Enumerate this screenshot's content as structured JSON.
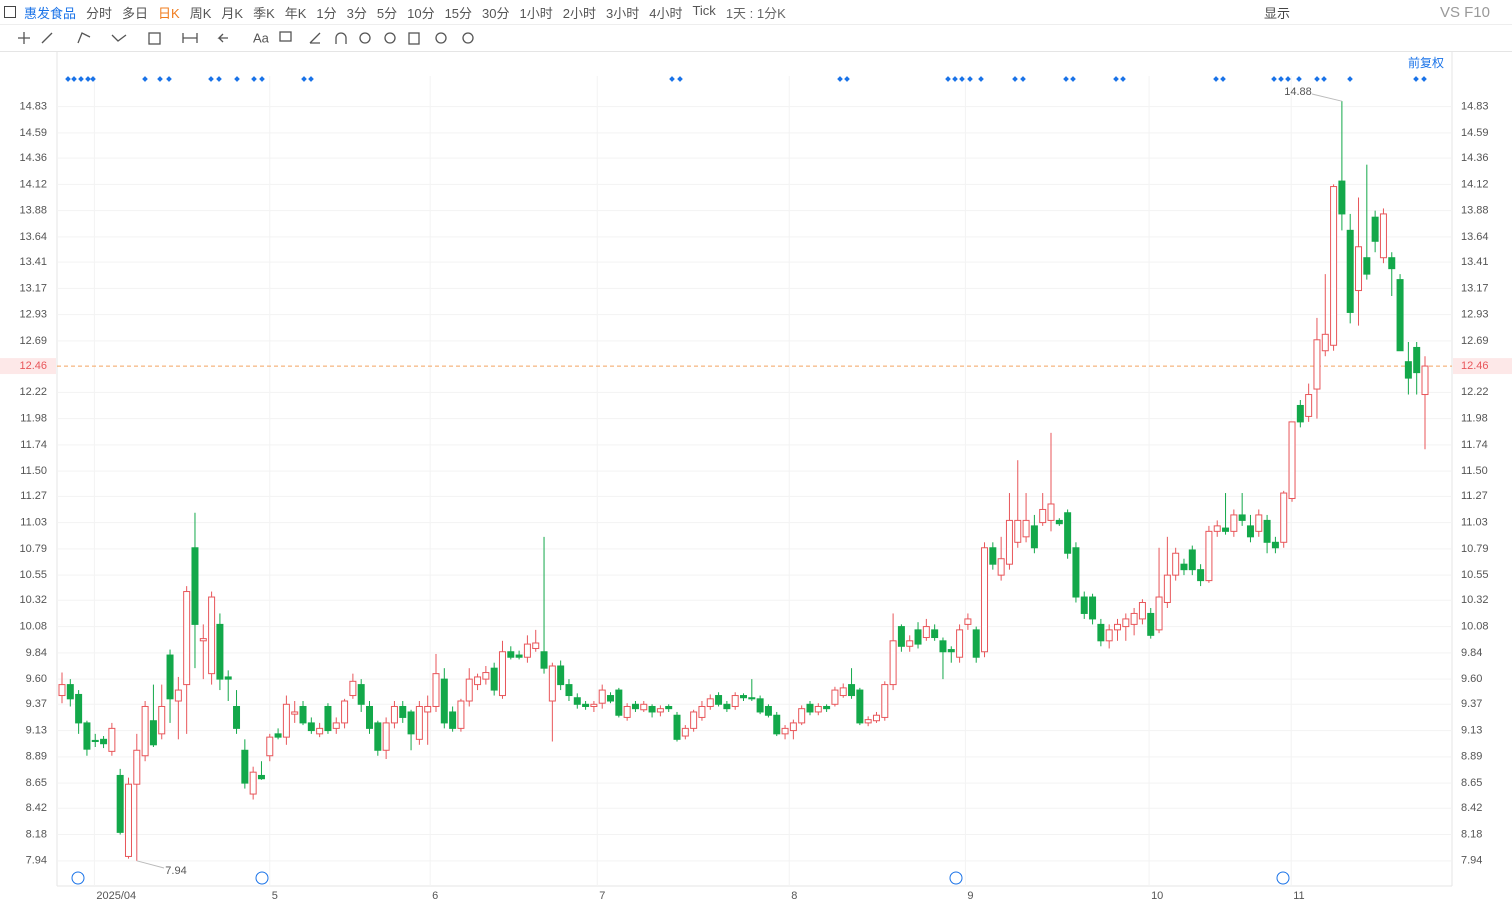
{
  "toolbar": {
    "stock": "惠发食品",
    "periods": [
      "分时",
      "多日",
      "日K",
      "周K",
      "月K",
      "季K",
      "年K",
      "1分",
      "3分",
      "5分",
      "10分",
      "15分",
      "30分",
      "1小时",
      "2小时",
      "3小时",
      "4小时",
      "Tick"
    ],
    "active_period": "日K",
    "interval": "1天 : 1分K",
    "display": "显示",
    "compare": "VS F10",
    "text_tool": "Aa"
  },
  "chart_data": {
    "type": "candlestick",
    "adjust": "前复权",
    "ylim": [
      7.71,
      15.11
    ],
    "yticks": [
      14.83,
      14.59,
      14.36,
      14.12,
      13.88,
      13.64,
      13.41,
      13.17,
      12.93,
      12.69,
      12.22,
      11.98,
      11.74,
      {
        "value": 11.5,
        "label": "11.50"
      },
      11.27,
      11.03,
      10.79,
      10.55,
      10.32,
      10.08,
      9.84,
      {
        "value": 9.6,
        "label": "9.60"
      },
      9.37,
      9.13,
      8.89,
      8.65,
      8.42,
      8.18,
      7.94
    ],
    "xticks": [
      {
        "value": 3.9,
        "label": "2025/04"
      },
      {
        "value": 25,
        "label": "5"
      },
      {
        "value": 44.3,
        "label": "6"
      },
      {
        "value": 64.4,
        "label": "7"
      },
      {
        "value": 87.5,
        "label": "8"
      },
      {
        "value": 108.7,
        "label": "9"
      },
      {
        "value": 130.8,
        "label": "10"
      },
      {
        "value": 147.9,
        "label": "11"
      }
    ],
    "last_price": 12.46,
    "high_label": 14.88,
    "low_label": 7.94,
    "up_color": "#e8565a",
    "down_color": "#13a84a",
    "ohlc": [
      [
        9.45,
        9.66,
        9.38,
        9.55
      ],
      [
        9.55,
        9.6,
        9.35,
        9.42
      ],
      [
        9.46,
        9.5,
        9.1,
        9.2
      ],
      [
        9.2,
        9.22,
        8.9,
        8.96
      ],
      [
        9.04,
        9.1,
        8.98,
        9.03
      ],
      [
        9.05,
        9.08,
        8.97,
        9.01
      ],
      [
        8.94,
        9.2,
        8.9,
        9.15
      ],
      [
        8.72,
        8.78,
        8.18,
        8.2
      ],
      [
        7.98,
        8.7,
        7.96,
        8.64
      ],
      [
        8.64,
        9.1,
        7.94,
        8.95
      ],
      [
        8.9,
        9.4,
        8.85,
        9.35
      ],
      [
        9.22,
        9.55,
        8.98,
        9.0
      ],
      [
        9.1,
        9.55,
        9.05,
        9.35
      ],
      [
        9.82,
        9.87,
        9.2,
        9.42
      ],
      [
        9.4,
        9.62,
        9.05,
        9.5
      ],
      [
        9.55,
        10.45,
        9.1,
        10.4
      ],
      [
        10.8,
        11.12,
        9.7,
        10.1
      ],
      [
        9.95,
        10.1,
        9.6,
        9.97
      ],
      [
        9.65,
        10.4,
        9.55,
        10.35
      ],
      [
        10.1,
        10.2,
        9.5,
        9.6
      ],
      [
        9.62,
        9.68,
        9.4,
        9.6
      ],
      [
        9.35,
        9.5,
        9.1,
        9.15
      ],
      [
        8.95,
        9.05,
        8.6,
        8.65
      ],
      [
        8.55,
        8.8,
        8.5,
        8.75
      ],
      [
        8.72,
        8.85,
        8.68,
        8.69
      ],
      [
        8.9,
        9.1,
        8.85,
        9.07
      ],
      [
        9.1,
        9.15,
        9.05,
        9.07
      ],
      [
        9.07,
        9.45,
        9.0,
        9.37
      ],
      [
        9.28,
        9.4,
        9.2,
        9.3
      ],
      [
        9.35,
        9.4,
        9.18,
        9.2
      ],
      [
        9.2,
        9.25,
        9.1,
        9.13
      ],
      [
        9.1,
        9.2,
        9.07,
        9.15
      ],
      [
        9.35,
        9.38,
        9.1,
        9.13
      ],
      [
        9.15,
        9.25,
        9.1,
        9.2
      ],
      [
        9.2,
        9.42,
        9.15,
        9.4
      ],
      [
        9.45,
        9.65,
        9.42,
        9.58
      ],
      [
        9.55,
        9.6,
        9.3,
        9.37
      ],
      [
        9.35,
        9.4,
        9.1,
        9.15
      ],
      [
        9.2,
        9.22,
        8.9,
        8.95
      ],
      [
        8.95,
        9.25,
        8.87,
        9.2
      ],
      [
        9.2,
        9.4,
        9.15,
        9.35
      ],
      [
        9.35,
        9.4,
        9.2,
        9.25
      ],
      [
        9.3,
        9.32,
        8.95,
        9.1
      ],
      [
        9.05,
        9.4,
        9.0,
        9.35
      ],
      [
        9.3,
        9.45,
        9.0,
        9.35
      ],
      [
        9.35,
        9.83,
        9.3,
        9.65
      ],
      [
        9.6,
        9.7,
        9.15,
        9.2
      ],
      [
        9.3,
        9.35,
        9.12,
        9.15
      ],
      [
        9.15,
        9.42,
        9.12,
        9.4
      ],
      [
        9.4,
        9.7,
        9.35,
        9.6
      ],
      [
        9.55,
        9.65,
        9.5,
        9.62
      ],
      [
        9.6,
        9.72,
        9.55,
        9.66
      ],
      [
        9.7,
        9.75,
        9.45,
        9.5
      ],
      [
        9.45,
        9.95,
        9.42,
        9.85
      ],
      [
        9.85,
        9.9,
        9.78,
        9.8
      ],
      [
        9.82,
        9.86,
        9.78,
        9.8
      ],
      [
        9.8,
        10.0,
        9.75,
        9.92
      ],
      [
        9.88,
        10.05,
        9.85,
        9.93
      ],
      [
        9.85,
        10.9,
        9.65,
        9.7
      ],
      [
        9.4,
        9.75,
        9.03,
        9.72
      ],
      [
        9.72,
        9.77,
        9.5,
        9.55
      ],
      [
        9.55,
        9.6,
        9.4,
        9.45
      ],
      [
        9.43,
        9.47,
        9.33,
        9.37
      ],
      [
        9.37,
        9.4,
        9.32,
        9.35
      ],
      [
        9.35,
        9.4,
        9.3,
        9.37
      ],
      [
        9.38,
        9.55,
        9.33,
        9.5
      ],
      [
        9.45,
        9.48,
        9.38,
        9.4
      ],
      [
        9.5,
        9.52,
        9.25,
        9.27
      ],
      [
        9.25,
        9.38,
        9.22,
        9.35
      ],
      [
        9.37,
        9.4,
        9.3,
        9.33
      ],
      [
        9.32,
        9.4,
        9.3,
        9.37
      ],
      [
        9.35,
        9.37,
        9.25,
        9.3
      ],
      [
        9.3,
        9.36,
        9.26,
        9.33
      ],
      [
        9.35,
        9.37,
        9.3,
        9.33
      ],
      [
        9.27,
        9.3,
        9.03,
        9.05
      ],
      [
        9.08,
        9.18,
        9.05,
        9.15
      ],
      [
        9.15,
        9.32,
        9.12,
        9.3
      ],
      [
        9.25,
        9.4,
        9.22,
        9.35
      ],
      [
        9.35,
        9.46,
        9.32,
        9.42
      ],
      [
        9.45,
        9.48,
        9.35,
        9.37
      ],
      [
        9.37,
        9.4,
        9.3,
        9.33
      ],
      [
        9.35,
        9.48,
        9.32,
        9.45
      ],
      [
        9.45,
        9.47,
        9.4,
        9.43
      ],
      [
        9.43,
        9.6,
        9.4,
        9.42
      ],
      [
        9.42,
        9.45,
        9.28,
        9.3
      ],
      [
        9.35,
        9.37,
        9.25,
        9.27
      ],
      [
        9.27,
        9.3,
        9.08,
        9.1
      ],
      [
        9.1,
        9.18,
        9.05,
        9.15
      ],
      [
        9.13,
        9.23,
        9.05,
        9.2
      ],
      [
        9.2,
        9.36,
        9.18,
        9.33
      ],
      [
        9.37,
        9.4,
        9.27,
        9.3
      ],
      [
        9.3,
        9.38,
        9.27,
        9.35
      ],
      [
        9.35,
        9.37,
        9.3,
        9.33
      ],
      [
        9.37,
        9.53,
        9.35,
        9.5
      ],
      [
        9.45,
        9.56,
        9.43,
        9.52
      ],
      [
        9.55,
        9.7,
        9.42,
        9.45
      ],
      [
        9.5,
        9.52,
        9.18,
        9.2
      ],
      [
        9.2,
        9.26,
        9.17,
        9.23
      ],
      [
        9.22,
        9.3,
        9.2,
        9.27
      ],
      [
        9.25,
        9.58,
        9.22,
        9.55
      ],
      [
        9.55,
        10.2,
        9.5,
        9.95
      ],
      [
        10.08,
        10.1,
        9.85,
        9.9
      ],
      [
        9.9,
        10.0,
        9.85,
        9.95
      ],
      [
        10.05,
        10.12,
        9.88,
        9.92
      ],
      [
        9.98,
        10.15,
        9.95,
        10.08
      ],
      [
        10.05,
        10.1,
        9.95,
        9.98
      ],
      [
        9.95,
        9.98,
        9.6,
        9.85
      ],
      [
        9.87,
        9.9,
        9.75,
        9.85
      ],
      [
        9.8,
        10.1,
        9.75,
        10.05
      ],
      [
        10.1,
        10.2,
        10.05,
        10.15
      ],
      [
        10.05,
        10.08,
        9.75,
        9.8
      ],
      [
        9.85,
        10.85,
        9.8,
        10.8
      ],
      [
        10.8,
        10.85,
        10.6,
        10.65
      ],
      [
        10.55,
        10.9,
        10.5,
        10.7
      ],
      [
        10.65,
        11.3,
        10.6,
        11.05
      ],
      [
        10.85,
        11.6,
        10.8,
        11.05
      ],
      [
        10.9,
        11.3,
        10.85,
        11.05
      ],
      [
        11.0,
        11.1,
        10.75,
        10.8
      ],
      [
        11.03,
        11.3,
        11.0,
        11.15
      ],
      [
        11.05,
        11.85,
        10.95,
        11.2
      ],
      [
        11.05,
        11.07,
        11.0,
        11.02
      ],
      [
        11.12,
        11.15,
        10.7,
        10.75
      ],
      [
        10.8,
        10.85,
        10.3,
        10.35
      ],
      [
        10.35,
        10.4,
        10.15,
        10.2
      ],
      [
        10.35,
        10.38,
        10.1,
        10.15
      ],
      [
        10.1,
        10.15,
        9.9,
        9.95
      ],
      [
        9.95,
        10.1,
        9.88,
        10.05
      ],
      [
        10.05,
        10.15,
        9.95,
        10.1
      ],
      [
        10.08,
        10.2,
        9.95,
        10.15
      ],
      [
        10.1,
        10.25,
        10.0,
        10.2
      ],
      [
        10.15,
        10.33,
        10.1,
        10.3
      ],
      [
        10.2,
        10.25,
        9.97,
        10.0
      ],
      [
        10.05,
        10.8,
        10.02,
        10.35
      ],
      [
        10.3,
        10.9,
        10.25,
        10.55
      ],
      [
        10.55,
        10.8,
        10.5,
        10.75
      ],
      [
        10.65,
        10.7,
        10.55,
        10.6
      ],
      [
        10.78,
        10.82,
        10.55,
        10.6
      ],
      [
        10.6,
        10.65,
        10.45,
        10.5
      ],
      [
        10.5,
        11.0,
        10.48,
        10.95
      ],
      [
        10.95,
        11.05,
        10.9,
        11.0
      ],
      [
        10.98,
        11.3,
        10.92,
        10.95
      ],
      [
        10.95,
        11.15,
        10.9,
        11.1
      ],
      [
        11.1,
        11.3,
        11.0,
        11.05
      ],
      [
        11.0,
        11.1,
        10.85,
        10.9
      ],
      [
        10.95,
        11.15,
        10.9,
        11.1
      ],
      [
        11.05,
        11.1,
        10.75,
        10.85
      ],
      [
        10.85,
        10.9,
        10.75,
        10.8
      ],
      [
        10.85,
        11.32,
        10.8,
        11.3
      ],
      [
        11.25,
        11.95,
        11.22,
        11.95
      ],
      [
        12.1,
        12.15,
        11.9,
        11.95
      ],
      [
        12.0,
        12.3,
        11.95,
        12.2
      ],
      [
        12.25,
        12.9,
        11.98,
        12.7
      ],
      [
        12.6,
        13.3,
        12.55,
        12.75
      ],
      [
        12.65,
        14.12,
        12.6,
        14.1
      ],
      [
        14.15,
        14.88,
        13.7,
        13.85
      ],
      [
        13.7,
        13.85,
        12.85,
        12.95
      ],
      [
        13.15,
        14.0,
        12.83,
        13.55
      ],
      [
        13.45,
        14.3,
        13.25,
        13.3
      ],
      [
        13.82,
        13.88,
        13.5,
        13.6
      ],
      [
        13.45,
        13.9,
        13.4,
        13.85
      ],
      [
        13.45,
        13.5,
        13.1,
        13.35
      ],
      [
        13.25,
        13.3,
        12.6,
        12.6
      ],
      [
        12.5,
        12.68,
        12.2,
        12.35
      ],
      [
        12.63,
        12.68,
        12.2,
        12.4
      ],
      [
        12.2,
        12.55,
        11.7,
        12.46
      ]
    ]
  }
}
